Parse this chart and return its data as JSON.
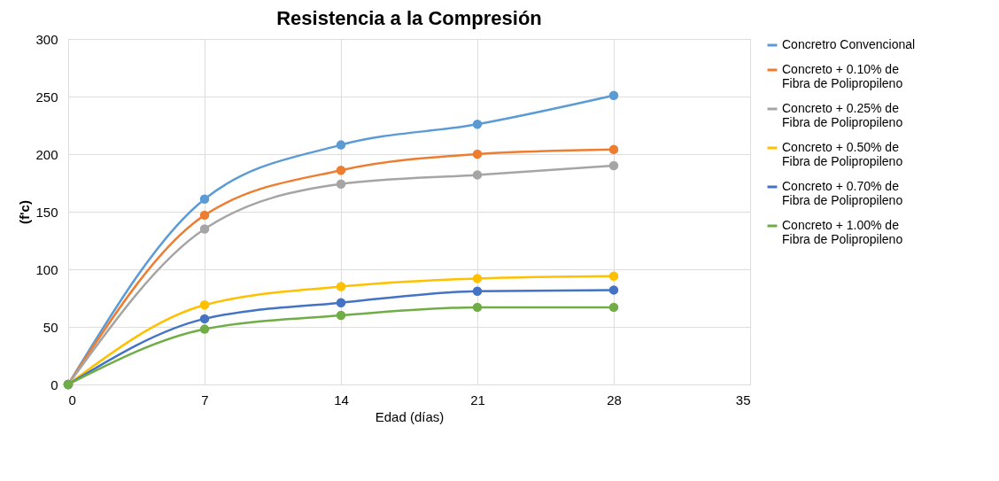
{
  "chart_data": {
    "type": "line",
    "title": "Resistencia a la Compresión",
    "xlabel": "Edad (días)",
    "ylabel": "(f'c)",
    "x": [
      0,
      7,
      14,
      21,
      28
    ],
    "xlim": [
      0,
      35
    ],
    "xticks": [
      0,
      7,
      14,
      21,
      28,
      35
    ],
    "ylim": [
      0,
      300
    ],
    "yticks": [
      0,
      50,
      100,
      150,
      200,
      250,
      300
    ],
    "grid": true,
    "legend": "right",
    "marker": "circle",
    "line_style": "solid",
    "series": [
      {
        "name": "Concretro Convencional",
        "color": "#5b9bd5",
        "values": [
          0,
          161,
          208,
          226,
          251
        ]
      },
      {
        "name": "Concreto + 0.10% de\nFibra de Polipropileno",
        "color": "#ed7d31",
        "values": [
          0,
          147,
          186,
          200,
          204
        ]
      },
      {
        "name": "Concreto + 0.25% de\nFibra de Polipropileno",
        "color": "#a5a5a5",
        "values": [
          0,
          135,
          174,
          182,
          190
        ]
      },
      {
        "name": "Concreto + 0.50% de\nFibra de Polipropileno",
        "color": "#ffc000",
        "values": [
          0,
          69,
          85,
          92,
          94
        ]
      },
      {
        "name": "Concreto + 0.70% de\nFibra de Polipropileno",
        "color": "#4472c4",
        "values": [
          0,
          57,
          71,
          81,
          82
        ]
      },
      {
        "name": "Concreto + 1.00% de\nFibra de Polipropileno",
        "color": "#70ad47",
        "values": [
          0,
          48,
          60,
          67,
          67
        ]
      }
    ]
  }
}
